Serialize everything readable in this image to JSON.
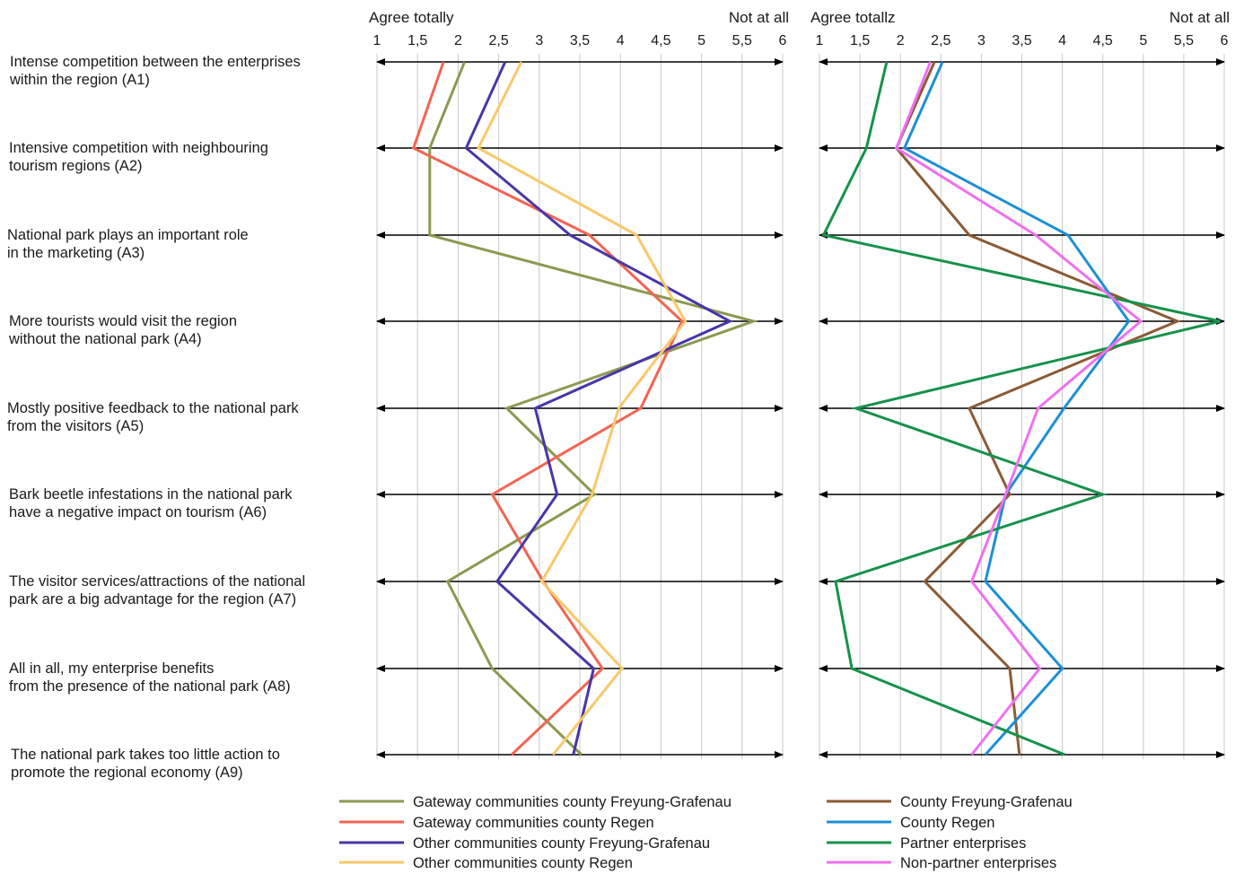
{
  "chart_data": [
    {
      "type": "line",
      "subtype": "profile",
      "header_left": "Agree totally",
      "header_right": "Not at all",
      "x_ticks": [
        "1",
        "1,5",
        "2",
        "2,5",
        "3",
        "3,5",
        "4",
        "4,5",
        "5",
        "5,5",
        "6"
      ],
      "xlim": [
        1,
        6
      ],
      "grid": true,
      "statements": [
        "Intense competition between the enterprises within the region (A1)",
        "Intensive competition with neighbouring tourism regions (A2)",
        "National park plays an important role in the marketing (A3)",
        "More tourists would visit the region without the national park (A4)",
        "Mostly positive feedback to the national park from the visitors (A5)",
        "Bark beetle infestations in the national park have a negative impact on tourism (A6)",
        "The visitor services/attractions of the national park are a big advantage for the region (A7)",
        "All in all, my enterprise benefits from the presence of the national park (A8)",
        "The national park takes too little action to promote the regional economy (A9)"
      ],
      "statement_lines": [
        [
          "Intense competition between the enterprises",
          "within the region (A1)"
        ],
        [
          "Intensive competition with neighbouring",
          "tourism regions (A2)"
        ],
        [
          "National park plays an important role",
          "in the marketing (A3)"
        ],
        [
          "More tourists would visit the region",
          "without the national park  (A4)"
        ],
        [
          "Mostly positive feedback to the national park",
          "from the visitors (A5)"
        ],
        [
          "Bark beetle infestations in the national park",
          "have a negative impact on tourism (A6)"
        ],
        [
          "The visitor services/attractions of the national",
          "park are a big advantage for the region (A7)"
        ],
        [
          "All in all, my enterprise benefits",
          "from the presence of the national park (A8)"
        ],
        [
          "The national park takes too little action to",
          "promote the regional economy (A9)"
        ]
      ],
      "series": [
        {
          "name": "Gateway communities county Freyung-Grafenau",
          "color": "#8a9a50",
          "values": [
            2.08,
            1.65,
            1.65,
            5.64,
            2.6,
            3.68,
            1.87,
            2.42,
            3.52
          ]
        },
        {
          "name": "Gateway communities county Regen",
          "color": "#f26552",
          "values": [
            1.82,
            1.45,
            3.62,
            4.76,
            4.25,
            2.42,
            3.05,
            3.78,
            2.66
          ]
        },
        {
          "name": "Other communities county Freyung-Grafenau",
          "color": "#4a35a8",
          "values": [
            2.58,
            2.1,
            3.38,
            5.35,
            2.95,
            3.22,
            2.48,
            3.67,
            3.42
          ]
        },
        {
          "name": "Other communities county Regen",
          "color": "#f8c86a",
          "values": [
            2.78,
            2.25,
            4.2,
            4.8,
            3.98,
            3.65,
            3.03,
            4.02,
            3.17
          ]
        }
      ]
    },
    {
      "type": "line",
      "subtype": "profile",
      "header_left": "Agree totallz",
      "header_right": "Not at all",
      "x_ticks": [
        "1",
        "1,5",
        "2",
        "2,5",
        "3",
        "3,5",
        "4",
        "4,5",
        "5",
        "5,5",
        "6"
      ],
      "xlim": [
        1,
        6
      ],
      "grid": true,
      "series": [
        {
          "name": "County Freyung-Grafenau",
          "color": "#8c5a35",
          "values": [
            2.42,
            1.95,
            2.85,
            5.42,
            2.85,
            3.35,
            2.3,
            3.35,
            3.47
          ]
        },
        {
          "name": "County Regen",
          "color": "#1e8fd4",
          "values": [
            2.52,
            2.05,
            4.07,
            4.82,
            4.02,
            3.3,
            3.05,
            4.0,
            3.05
          ]
        },
        {
          "name": "Partner enterprises",
          "color": "#16924a",
          "values": [
            1.83,
            1.58,
            1.05,
            5.95,
            1.45,
            4.5,
            1.2,
            1.4,
            4.03
          ]
        },
        {
          "name": "Non-partner enterprises",
          "color": "#ee70f0",
          "values": [
            2.37,
            1.95,
            3.67,
            4.97,
            3.7,
            3.3,
            2.88,
            3.72,
            2.88
          ]
        }
      ]
    }
  ]
}
